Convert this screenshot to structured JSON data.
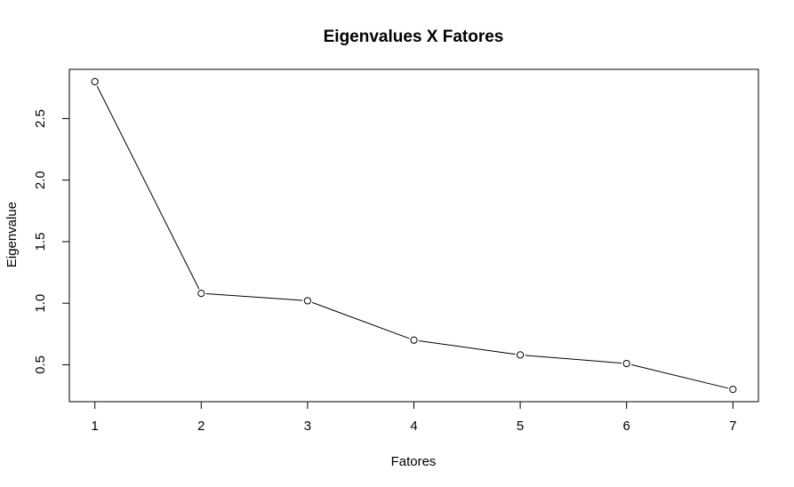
{
  "chart_data": {
    "type": "line",
    "title": "Eigenvalues X Fatores",
    "xlabel": "Fatores",
    "ylabel": "Eigenvalue",
    "x": [
      1,
      2,
      3,
      4,
      5,
      6,
      7
    ],
    "y": [
      2.8,
      1.08,
      1.02,
      0.7,
      0.58,
      0.51,
      0.3
    ],
    "xticks": [
      "1",
      "2",
      "3",
      "4",
      "5",
      "6",
      "7"
    ],
    "yticks": [
      "0.5",
      "1.0",
      "1.5",
      "2.0",
      "2.5"
    ],
    "xlim": [
      0.76,
      7.24
    ],
    "ylim": [
      0.2,
      2.9
    ],
    "grid": false,
    "marker": "open-circle",
    "line_color": "#000000"
  }
}
